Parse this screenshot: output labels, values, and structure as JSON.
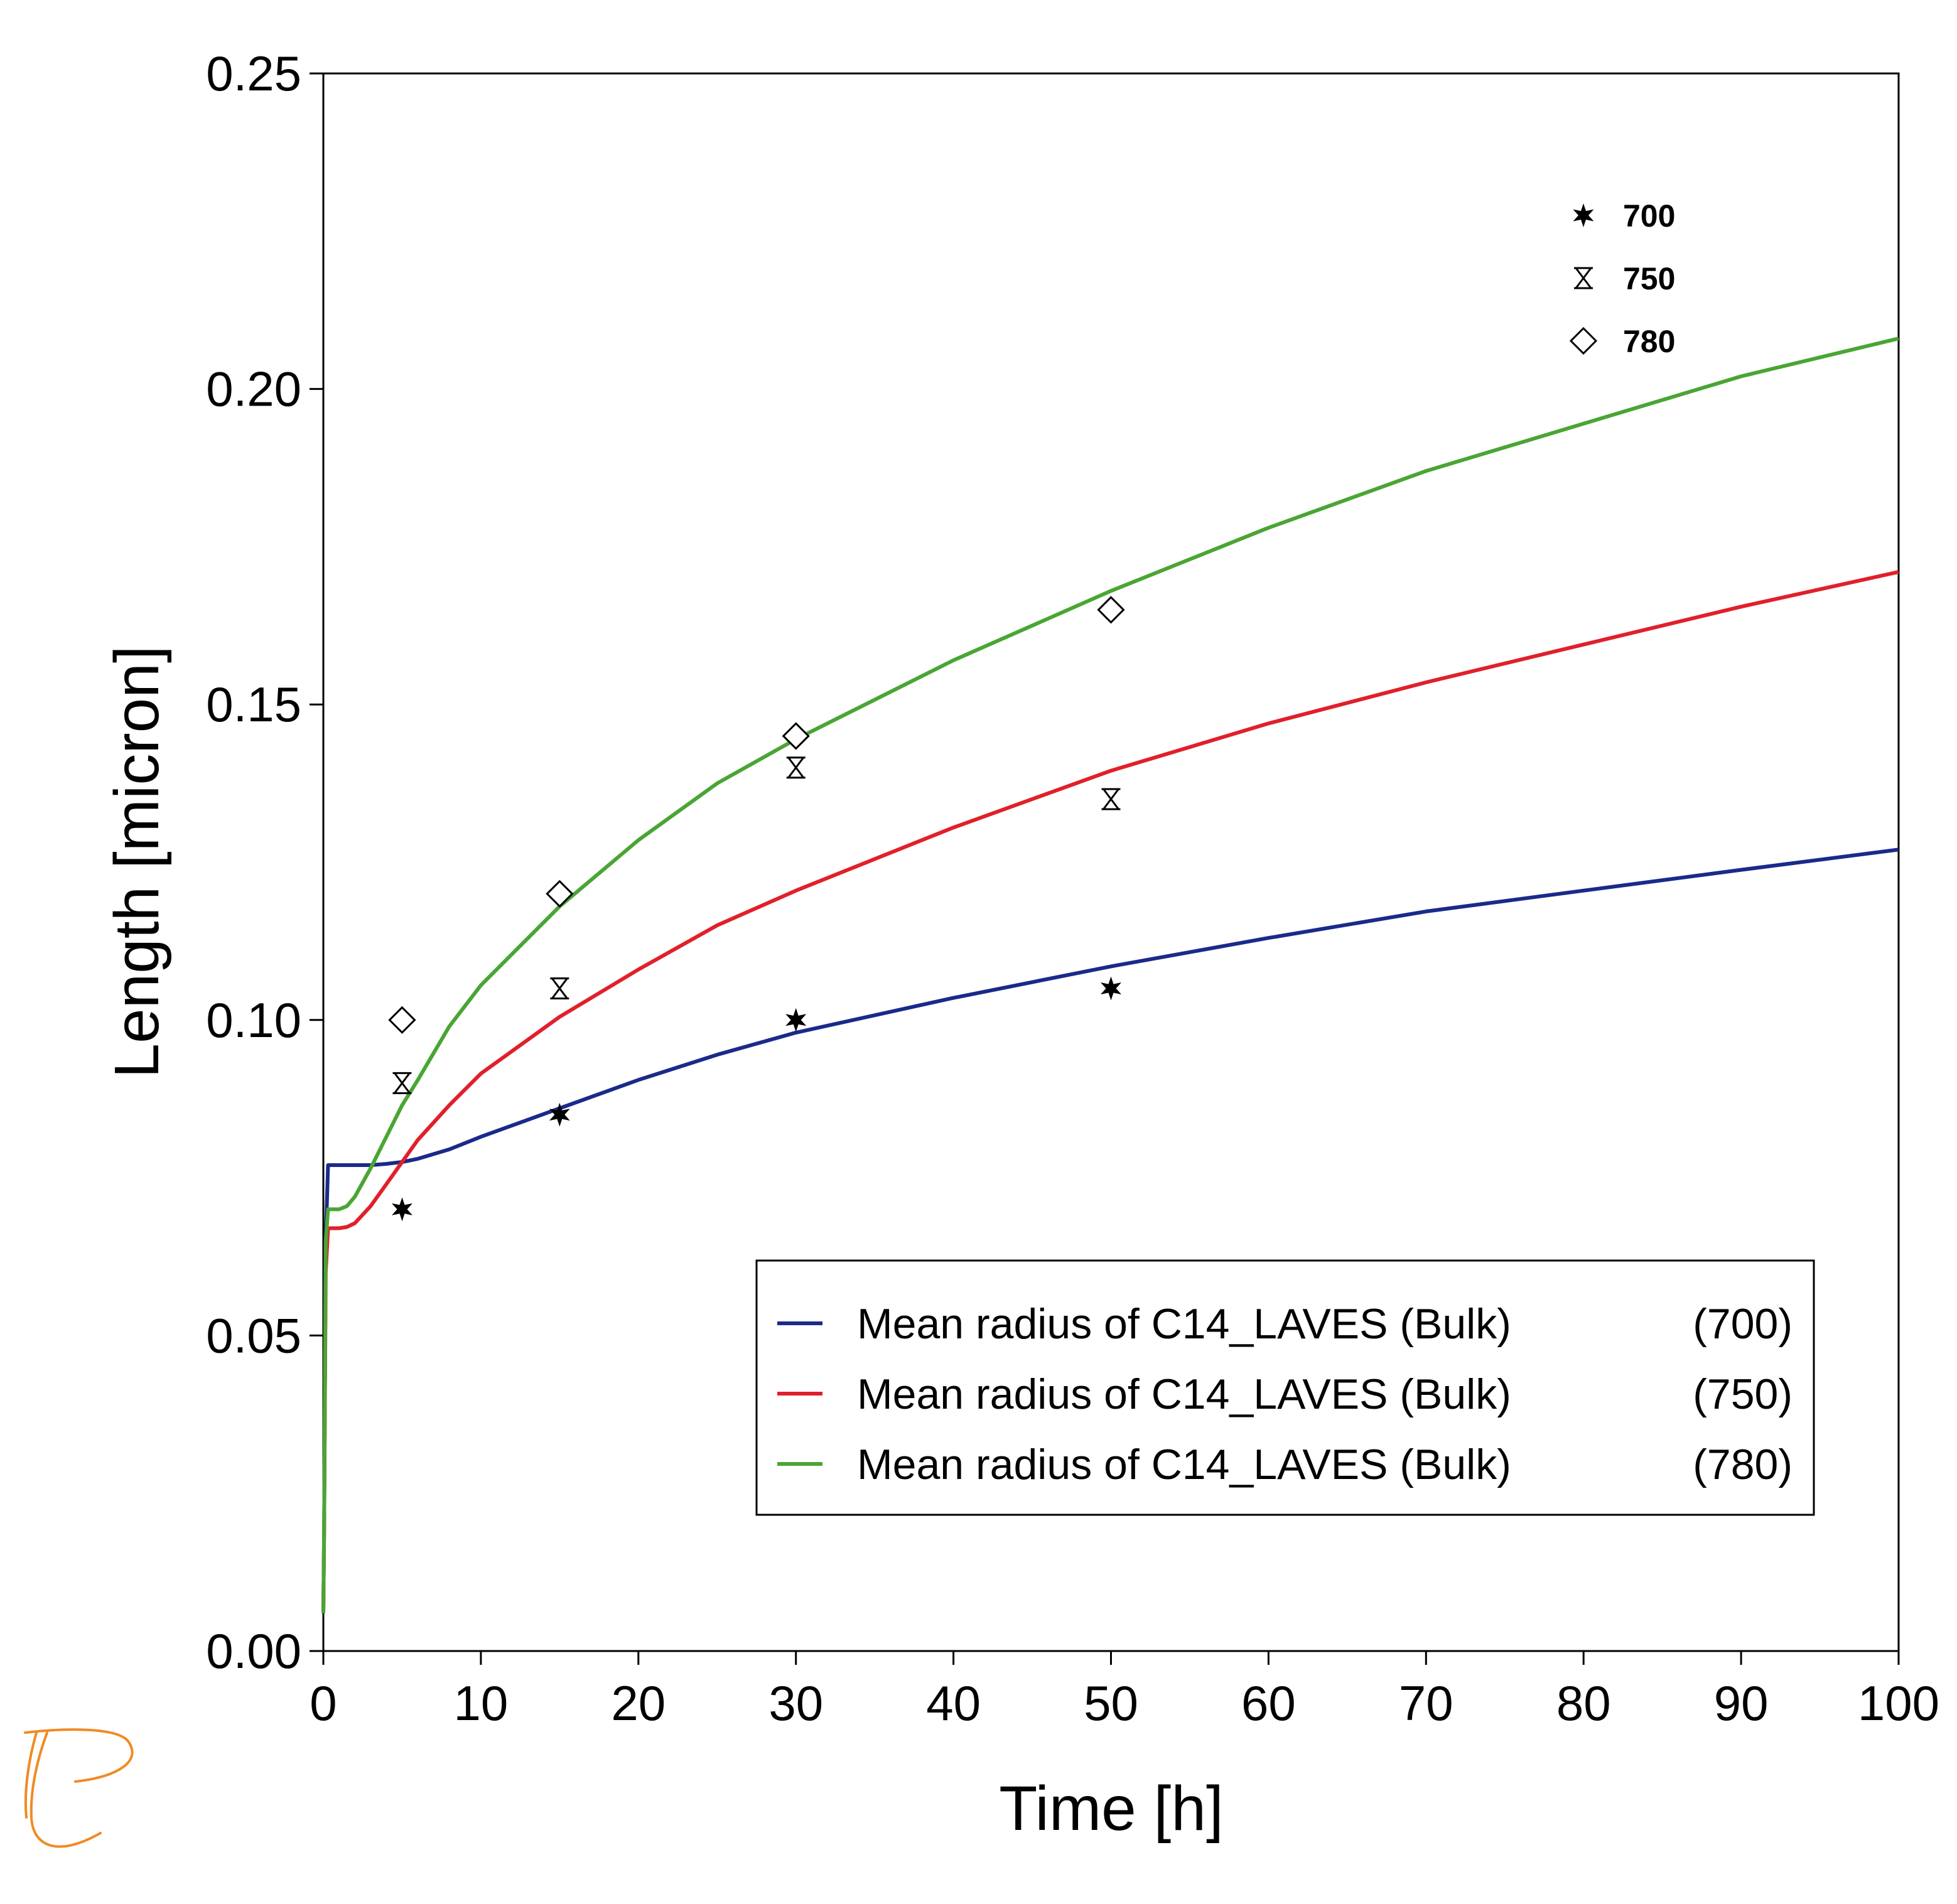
{
  "chart_data": {
    "type": "line",
    "xlabel": "Time [h]",
    "ylabel": "Length [micron]",
    "xlim": [
      0,
      100
    ],
    "ylim": [
      0,
      0.25
    ],
    "x_ticks": [
      "0",
      "10",
      "20",
      "30",
      "40",
      "50",
      "60",
      "70",
      "80",
      "90",
      "100"
    ],
    "y_ticks": [
      "0.00",
      "0.05",
      "0.10",
      "0.15",
      "0.20",
      "0.25"
    ],
    "grid": false,
    "series": [
      {
        "name": "Mean radius of C14_LAVES (Bulk)",
        "tag": "(700)",
        "color": "#1a2a8a",
        "x": [
          0,
          0.05,
          0.15,
          0.3,
          1,
          2,
          3,
          4,
          5,
          6,
          8,
          10,
          15,
          20,
          25,
          30,
          40,
          50,
          60,
          70,
          80,
          90,
          100
        ],
        "y": [
          0.006,
          0.02,
          0.065,
          0.077,
          0.077,
          0.077,
          0.077,
          0.0772,
          0.0775,
          0.078,
          0.0795,
          0.0815,
          0.086,
          0.0905,
          0.0945,
          0.098,
          0.1035,
          0.1085,
          0.113,
          0.1172,
          0.1205,
          0.1238,
          0.127
        ]
      },
      {
        "name": "Mean radius of C14_LAVES (Bulk)",
        "tag": "(750)",
        "color": "#e0202a",
        "x": [
          0,
          0.05,
          0.15,
          0.3,
          1,
          1.5,
          2,
          3,
          4,
          5,
          6,
          8,
          10,
          15,
          20,
          25,
          30,
          40,
          50,
          60,
          70,
          80,
          90,
          100
        ],
        "y": [
          0.006,
          0.02,
          0.06,
          0.067,
          0.067,
          0.0672,
          0.0678,
          0.0705,
          0.074,
          0.0775,
          0.081,
          0.0865,
          0.0915,
          0.1005,
          0.108,
          0.115,
          0.1205,
          0.1305,
          0.1395,
          0.147,
          0.1535,
          0.1595,
          0.1655,
          0.171
        ]
      },
      {
        "name": "Mean radius of C14_LAVES (Bulk)",
        "tag": "(780)",
        "color": "#4aa534",
        "x": [
          0,
          0.05,
          0.15,
          0.3,
          1,
          1.5,
          2,
          3,
          4,
          5,
          6,
          8,
          10,
          15,
          20,
          25,
          30,
          40,
          50,
          60,
          70,
          80,
          90,
          100
        ],
        "y": [
          0.006,
          0.02,
          0.065,
          0.07,
          0.07,
          0.0705,
          0.072,
          0.0765,
          0.0815,
          0.0865,
          0.0905,
          0.099,
          0.1055,
          0.118,
          0.1285,
          0.1375,
          0.1445,
          0.157,
          0.168,
          0.178,
          0.187,
          0.1945,
          0.202,
          0.208
        ]
      }
    ],
    "markers": [
      {
        "name": "700",
        "symbol": "star",
        "x": [
          5,
          15,
          30,
          50
        ],
        "y": [
          0.07,
          0.085,
          0.1,
          0.105
        ]
      },
      {
        "name": "750",
        "symbol": "hourglass",
        "x": [
          5,
          15,
          30,
          50
        ],
        "y": [
          0.09,
          0.105,
          0.14,
          0.135
        ]
      },
      {
        "name": "780",
        "symbol": "diamond",
        "x": [
          5,
          15,
          30,
          50
        ],
        "y": [
          0.1,
          0.12,
          0.145,
          0.165
        ]
      }
    ],
    "legend": {
      "position": "bottom-right"
    },
    "marker_legend": {
      "position": "top-right"
    }
  },
  "logo": {
    "color": "#f08a24",
    "icon": "thermo-calc-p-logo"
  }
}
